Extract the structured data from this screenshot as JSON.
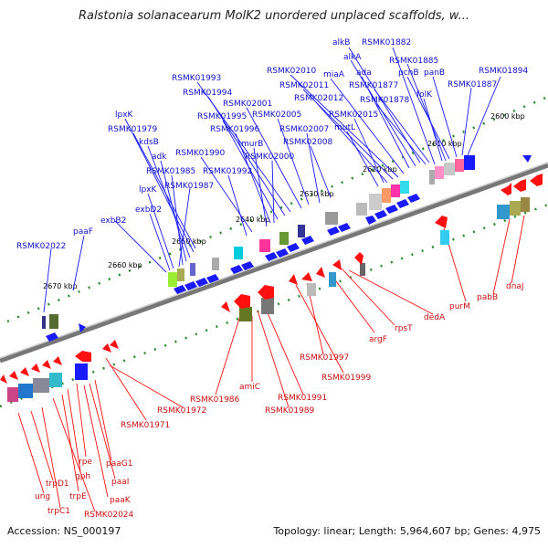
{
  "title": "Ralstonia solanacearum MolK2 unordered unplaced scaffolds, w...",
  "footer": {
    "accession": "Accession: NS_000197",
    "summary": "Topology: linear; Length: 5,964,607 bp; Genes: 4,975"
  },
  "colors": {
    "forward": "#1a1aff",
    "reverse": "#ff1010",
    "axis": "#666666",
    "tick": "#2a8a2a",
    "forward_label": "#1010cc",
    "reverse_label": "#cc1010"
  },
  "scale_labels": [
    "2600 kbp",
    "2610 kbp",
    "2620 kbp",
    "2630 kbp",
    "2640 kbp",
    "2650 kbp",
    "2660 kbp",
    "2670 kbp"
  ],
  "forward_genes": [
    "alkB",
    "RSMK01882",
    "alkA",
    "RSMK01885",
    "ada",
    "pcnB",
    "panB",
    "RSMK01894",
    "miaA",
    "RSMK02010",
    "RSMK02011",
    "RSMK01877",
    "RSMK01887",
    "folK",
    "RSMK02012",
    "RSMK01878",
    "RSMK01993",
    "RSMK01994",
    "RSMK02001",
    "RSMK02005",
    "RSMK01995",
    "RSMK02015",
    "mutL",
    "lpxK",
    "RSMK01979",
    "RSMK01996",
    "RSMK02007",
    "RSMK02008",
    "kdsB",
    "murB",
    "adk",
    "RSMK01990",
    "RSMK02000",
    "RSMK01985",
    "RSMK01992",
    "RSMK01987",
    "lpxK",
    "exbD2",
    "exbB2",
    "paaF",
    "RSMK02022"
  ],
  "reverse_genes": [
    "dnaJ",
    "pabB",
    "purM",
    "dedA",
    "rpsT",
    "argF",
    "RSMK01997",
    "RSMK01999",
    "amiC",
    "RSMK01986",
    "RSMK01991",
    "RSMK01989",
    "RSMK01972",
    "RSMK01971",
    "rpe",
    "gph",
    "trpD1",
    "trpE",
    "ung",
    "trpC1",
    "paaG1",
    "paaI",
    "paaK",
    "RSMK02024"
  ]
}
